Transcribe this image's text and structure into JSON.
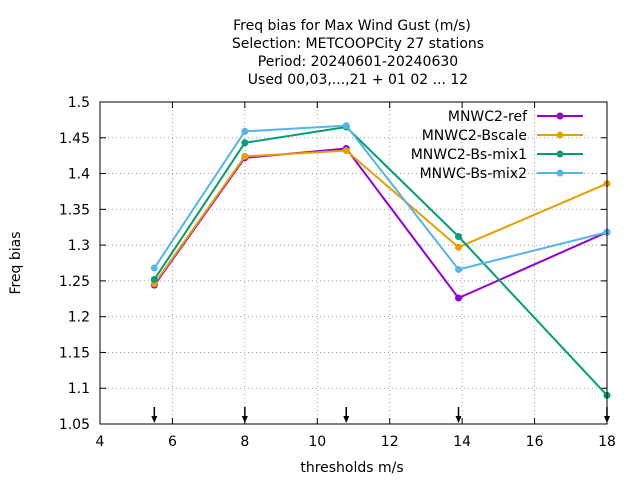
{
  "chart_data": {
    "type": "line",
    "title": [
      "Freq bias  for Max Wind Gust (m/s)",
      "Selection: METCOOPCity      27 stations",
      "Period: 20240601-20240630",
      "Used 00,03,...,21 + 01 02 ... 12"
    ],
    "xlabel": "thresholds m/s",
    "ylabel": "Freq bias",
    "xlim": [
      4,
      18
    ],
    "ylim": [
      1.05,
      1.5
    ],
    "xticks": [
      4,
      6,
      8,
      10,
      12,
      14,
      16,
      18
    ],
    "yticks": [
      1.05,
      1.1,
      1.15,
      1.2,
      1.25,
      1.3,
      1.35,
      1.4,
      1.45,
      1.5
    ],
    "xtick_labels": [
      "4",
      "6",
      "8",
      "10",
      "12",
      "14",
      "16",
      "18"
    ],
    "ytick_labels": [
      "1.05",
      "1.1",
      "1.15",
      "1.2",
      "1.25",
      "1.3",
      "1.35",
      "1.4",
      "1.45",
      "1.5"
    ],
    "grid": true,
    "legend_position": "top-right",
    "x": [
      5.5,
      8.0,
      10.8,
      13.9,
      18.0
    ],
    "arrow_markers_x": [
      5.5,
      8.0,
      10.8,
      13.9,
      18.0
    ],
    "series": [
      {
        "name": "MNWC2-ref",
        "color": "#9400d3",
        "values": [
          1.244,
          1.422,
          1.435,
          1.226,
          1.318
        ]
      },
      {
        "name": "MNWC2-Bscale",
        "color": "#e69f00",
        "values": [
          1.246,
          1.424,
          1.432,
          1.297,
          1.386
        ]
      },
      {
        "name": "MNWC2-Bs-mix1",
        "color": "#009e73",
        "values": [
          1.252,
          1.443,
          1.465,
          1.312,
          1.09
        ]
      },
      {
        "name": "MNWC-Bs-mix2",
        "color": "#56b4e9",
        "values": [
          1.268,
          1.459,
          1.467,
          1.266,
          1.318
        ]
      }
    ]
  }
}
